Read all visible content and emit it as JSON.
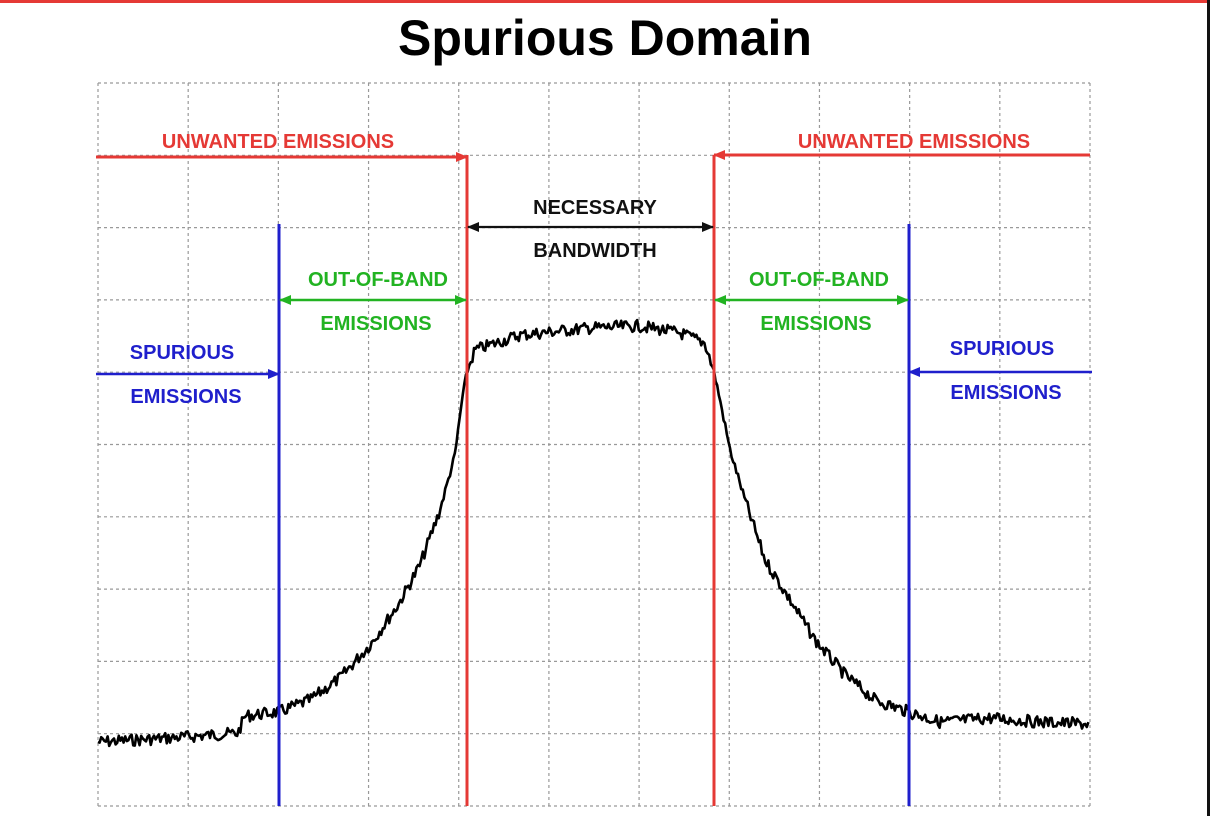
{
  "title": "Spurious Domain",
  "colors": {
    "unwanted": "#e53935",
    "out_of_band": "#22b322",
    "spurious": "#1f1fcc",
    "necessary": "#111111",
    "grid": "#999999",
    "trace": "#000000",
    "frame": "#e53935"
  },
  "labels": {
    "unwanted_left": "UNWANTED EMISSIONS",
    "unwanted_right": "UNWANTED EMISSIONS",
    "necessary_line1": "NECESSARY",
    "necessary_line2": "BANDWIDTH",
    "oob_left_line1": "OUT-OF-BAND",
    "oob_left_line2": "EMISSIONS",
    "oob_right_line1": "OUT-OF-BAND",
    "oob_right_line2": "EMISSIONS",
    "spurious_left_line1": "SPURIOUS",
    "spurious_left_line2": "EMISSIONS",
    "spurious_right_line1": "SPURIOUS",
    "spurious_right_line2": "EMISSIONS"
  }
}
